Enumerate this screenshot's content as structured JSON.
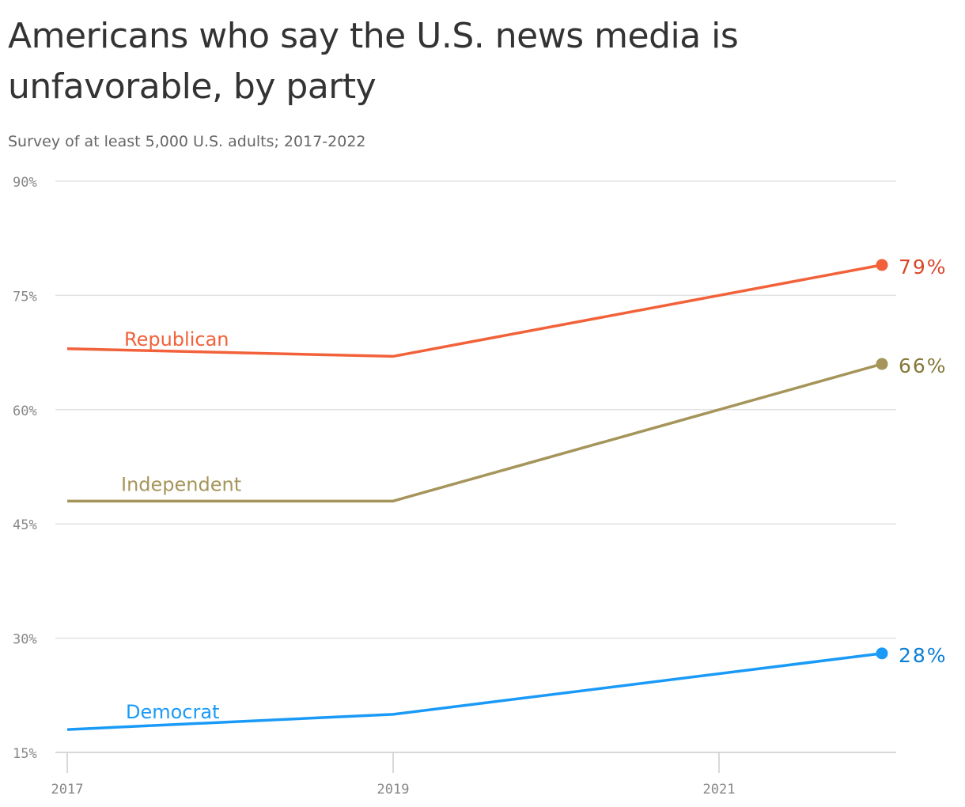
{
  "title": "Americans who say the U.S. news media is unfavorable, by party",
  "subtitle": "Survey of at least 5,000 U.S. adults; 2017-2022",
  "chart_data": {
    "type": "line",
    "title": "Americans who say the U.S. news media is unfavorable, by party",
    "subtitle": "Survey of at least 5,000 U.S. adults; 2017-2022",
    "x": [
      2017,
      2019,
      2022
    ],
    "xlim": [
      2017,
      2022.5
    ],
    "xticks": [
      2017,
      2019,
      2021
    ],
    "xtick_labels": [
      "2017",
      "2019",
      "2021"
    ],
    "ylim": [
      15,
      90
    ],
    "yticks": [
      15,
      30,
      45,
      60,
      75,
      90
    ],
    "ytick_labels": [
      "15%",
      "30%",
      "45%",
      "60%",
      "75%",
      "90%"
    ],
    "grid": true,
    "series": [
      {
        "name": "Republican",
        "values": [
          68,
          67,
          79
        ],
        "end_label": "79%",
        "color": "#f26139",
        "label_color": "#d9472b"
      },
      {
        "name": "Independent",
        "values": [
          48,
          48,
          66
        ],
        "end_label": "66%",
        "color": "#a5955a",
        "label_color": "#857838"
      },
      {
        "name": "Democrat",
        "values": [
          18,
          20,
          28
        ],
        "end_label": "28%",
        "color": "#1a9af7",
        "label_color": "#0a7ed6"
      }
    ]
  }
}
